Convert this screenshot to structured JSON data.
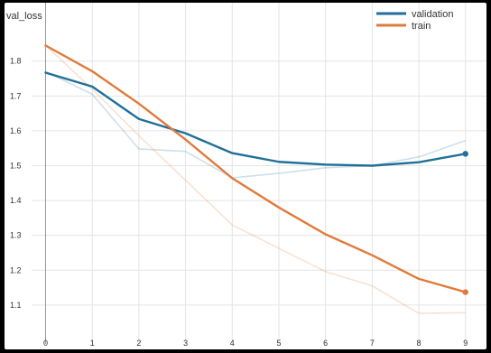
{
  "chart_data": {
    "type": "line",
    "title": "val_loss",
    "xlabel": "",
    "ylabel": "",
    "x": [
      0,
      1,
      2,
      3,
      4,
      5,
      6,
      7,
      8,
      9
    ],
    "x_ticks": [
      "0",
      "1",
      "2",
      "3",
      "4",
      "5",
      "6",
      "7",
      "8",
      "9"
    ],
    "y_ticks": [
      "1.1",
      "1.2",
      "1.3",
      "1.4",
      "1.5",
      "1.6",
      "1.7",
      "1.8"
    ],
    "xlim": [
      -0.3,
      9.45
    ],
    "ylim": [
      1.04,
      1.89
    ],
    "grid": true,
    "legend_position": "top-right",
    "series": [
      {
        "name": "validation",
        "color": "#1f6f9a",
        "values": [
          1.767,
          1.727,
          1.634,
          1.593,
          1.536,
          1.511,
          1.503,
          1.5,
          1.51,
          1.534
        ],
        "raw_values": [
          1.77,
          1.705,
          1.548,
          1.541,
          1.465,
          1.478,
          1.494,
          1.5,
          1.525,
          1.572
        ]
      },
      {
        "name": "train",
        "color": "#e07a3a",
        "values": [
          1.845,
          1.771,
          1.678,
          1.575,
          1.464,
          1.38,
          1.303,
          1.243,
          1.175,
          1.137
        ],
        "raw_values": [
          1.845,
          1.72,
          1.586,
          1.458,
          1.33,
          1.263,
          1.196,
          1.155,
          1.076,
          1.078
        ]
      }
    ]
  }
}
